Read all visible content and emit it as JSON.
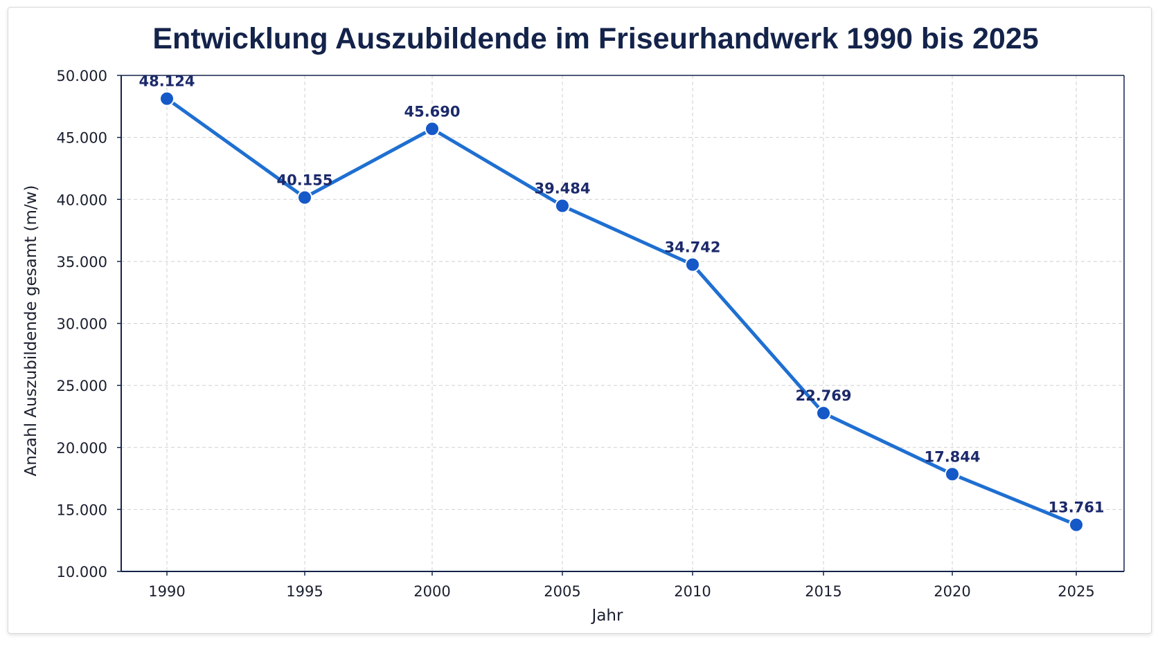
{
  "chart_data": {
    "type": "line",
    "title": "Entwicklung Auszubildende im Friseurhandwerk 1990 bis 2025",
    "xlabel": "Jahr",
    "ylabel": "Anzahl Auszubildende gesamt (m/w)",
    "x": [
      "1990",
      "1995",
      "2000",
      "2005",
      "2010",
      "2015",
      "2020",
      "2025"
    ],
    "y_values": [
      48124,
      40155,
      45690,
      39484,
      34742,
      22769,
      17844,
      13761
    ],
    "data_labels": [
      "48.124",
      "40.155",
      "45.690",
      "39.484",
      "34.742",
      "22.769",
      "17.844",
      "13.761"
    ],
    "ylim": [
      10000,
      50000
    ],
    "y_ticks": [
      10000,
      15000,
      20000,
      25000,
      30000,
      35000,
      40000,
      45000,
      50000
    ],
    "y_tick_labels": [
      "10.000",
      "15.000",
      "20.000",
      "25.000",
      "30.000",
      "35.000",
      "40.000",
      "45.000",
      "50.000"
    ],
    "grid": true,
    "legend": false,
    "line_color": "#1f6fd1",
    "marker_color": "#1558c8",
    "label_color": "#1c2a6b",
    "grid_color": "#cfcfcf",
    "axis_color": "#14234a"
  }
}
